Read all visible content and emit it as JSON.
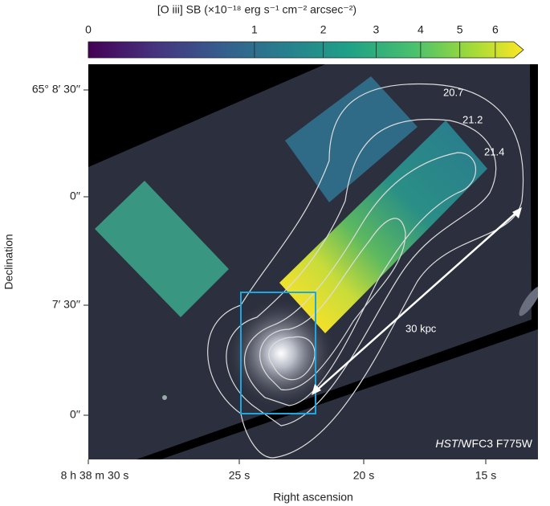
{
  "chart_data": {
    "type": "image",
    "colorbar": {
      "label": "[O iii] SB (×10⁻¹⁸ erg s⁻¹ cm⁻² arcsec⁻²)",
      "stretch": "sqrt",
      "lim": [
        0,
        6.56
      ],
      "ticks": [
        0,
        1,
        2,
        3,
        4,
        5,
        6
      ]
    },
    "xlabel": "Right ascension",
    "ylabel": "Declination",
    "xticks": [
      "8 h 38 m 30 s",
      "25 s",
      "20 s",
      "15 s"
    ],
    "yticks": [
      "65° 8′ 30′′",
      "0′′",
      "7′ 30′′",
      "0′′"
    ],
    "contour_labels": [
      "20.7",
      "21.2",
      "21.4"
    ],
    "scale_bar": "30 kpc",
    "instrument": {
      "telescope": "HST",
      "filter": "/WFC3 F775W"
    }
  }
}
